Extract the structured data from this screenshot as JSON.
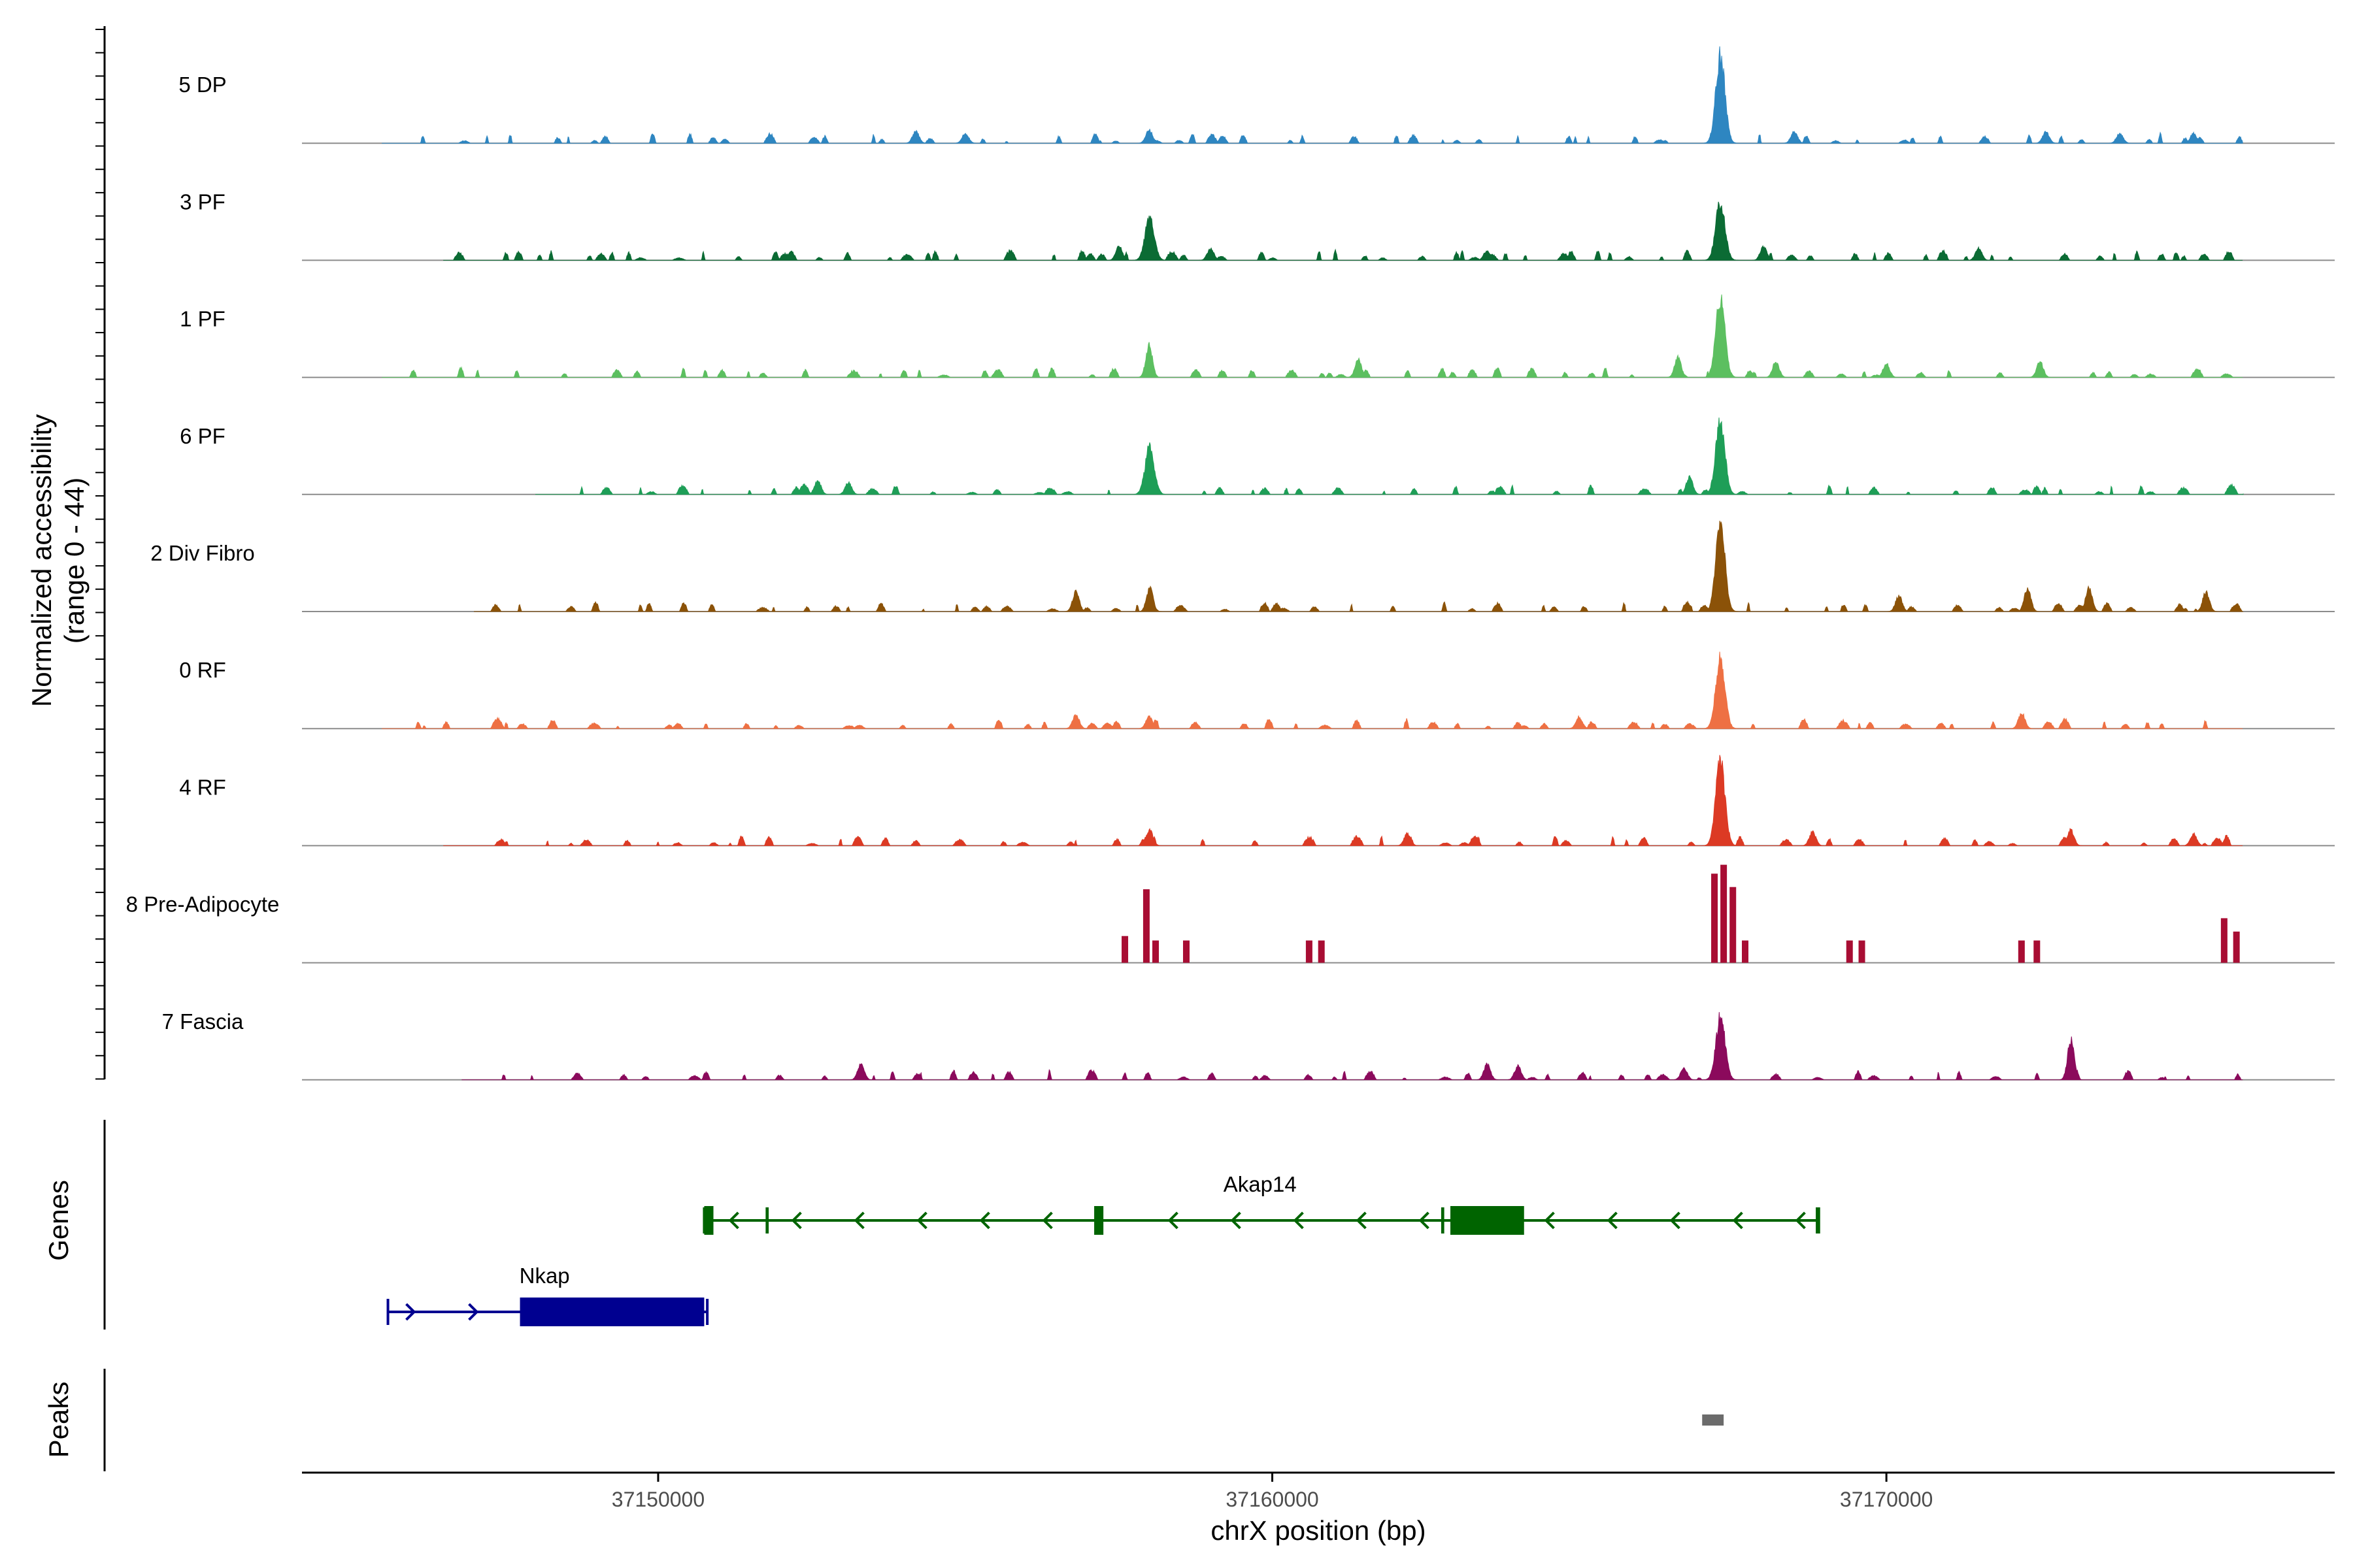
{
  "chart_data": {
    "type": "area",
    "title": "",
    "xlabel": "chrX position (bp)",
    "ylabel": "Normalized accessibility\n(range 0 - 44)",
    "ylabel_line1": "Normalized accessibility",
    "ylabel_line2": "(range 0 - 44)",
    "ylim": [
      0,
      44
    ],
    "xlim": [
      37144200,
      37177300
    ],
    "x_ticks": [
      {
        "value": 37150000,
        "label": "37150000"
      },
      {
        "value": 37160000,
        "label": "37160000"
      },
      {
        "value": 37170000,
        "label": "37170000"
      }
    ],
    "tracks": [
      {
        "name": "5 DP",
        "color": "#2E86C1",
        "range": [
          37145500,
          37175800
        ],
        "peaks": [
          [
            37158000,
            7
          ],
          [
            37167300,
            44
          ],
          [
            37154200,
            6
          ],
          [
            37155000,
            5
          ],
          [
            37168500,
            6
          ],
          [
            37172600,
            6
          ],
          [
            37173800,
            5
          ],
          [
            37175000,
            5
          ]
        ]
      },
      {
        "name": "3 PF",
        "color": "#0B6B34",
        "range": [
          37146500,
          37175800
        ],
        "peaks": [
          [
            37158000,
            22
          ],
          [
            37167300,
            30
          ],
          [
            37157500,
            7
          ],
          [
            37159000,
            6
          ],
          [
            37163500,
            5
          ],
          [
            37168000,
            7
          ],
          [
            37171500,
            6
          ]
        ]
      },
      {
        "name": "1 PF",
        "color": "#5CBF60",
        "range": [
          37145500,
          37175800
        ],
        "peaks": [
          [
            37158000,
            16
          ],
          [
            37167300,
            40
          ],
          [
            37166600,
            10
          ],
          [
            37168200,
            8
          ],
          [
            37161400,
            9
          ],
          [
            37170000,
            7
          ],
          [
            37172500,
            8
          ]
        ]
      },
      {
        "name": "6 PF",
        "color": "#1E9E57",
        "range": [
          37148000,
          37175800
        ],
        "peaks": [
          [
            37158000,
            24
          ],
          [
            37167300,
            38
          ],
          [
            37166800,
            9
          ],
          [
            37152600,
            7
          ],
          [
            37153100,
            6
          ]
        ]
      },
      {
        "name": "2 Div Fibro",
        "color": "#8B5208",
        "range": [
          37147000,
          37175800
        ],
        "peaks": [
          [
            37167300,
            44
          ],
          [
            37158000,
            12
          ],
          [
            37156800,
            10
          ],
          [
            37170200,
            8
          ],
          [
            37172300,
            12
          ],
          [
            37173300,
            12
          ],
          [
            37175200,
            10
          ]
        ]
      },
      {
        "name": "0 RF",
        "color": "#EE7043",
        "range": [
          37145500,
          37175800
        ],
        "peaks": [
          [
            37167300,
            36
          ],
          [
            37156800,
            7
          ],
          [
            37158000,
            6
          ],
          [
            37165000,
            6
          ],
          [
            37172200,
            8
          ]
        ]
      },
      {
        "name": "4 RF",
        "color": "#DC3A24",
        "range": [
          37146500,
          37175800
        ],
        "peaks": [
          [
            37167300,
            44
          ],
          [
            37158000,
            8
          ],
          [
            37162200,
            6
          ],
          [
            37168800,
            7
          ],
          [
            37173000,
            8
          ],
          [
            37175000,
            6
          ]
        ]
      },
      {
        "name": "8 Pre-Adipocyte",
        "color": "#A80D33",
        "type": "bars",
        "bars": [
          [
            37157600,
            12
          ],
          [
            37157950,
            33
          ],
          [
            37158100,
            10
          ],
          [
            37158600,
            10
          ],
          [
            37160600,
            10
          ],
          [
            37160800,
            10
          ],
          [
            37167200,
            40
          ],
          [
            37167350,
            44
          ],
          [
            37167500,
            34
          ],
          [
            37167700,
            10
          ],
          [
            37169400,
            10
          ],
          [
            37169600,
            10
          ],
          [
            37172200,
            10
          ],
          [
            37172450,
            10
          ],
          [
            37175500,
            20
          ],
          [
            37175700,
            14
          ]
        ]
      },
      {
        "name": "7 Fascia",
        "color": "#8B0A5C",
        "range": [
          37146800,
          37175800
        ],
        "peaks": [
          [
            37167300,
            32
          ],
          [
            37173000,
            20
          ],
          [
            37163500,
            8
          ],
          [
            37164000,
            7
          ],
          [
            37153300,
            8
          ],
          [
            37166700,
            6
          ]
        ]
      }
    ],
    "genes": {
      "label": "Genes",
      "items": [
        {
          "name": "Nkap",
          "color": "#000090",
          "strand": "+",
          "start": 37145600,
          "end": 37150800,
          "exons": [
            [
              37147750,
              37150750
            ]
          ],
          "row": 2
        },
        {
          "name": "Akap14",
          "color": "#006400",
          "strand": "-",
          "start": 37150750,
          "end": 37168900,
          "exons": [
            [
              37150750,
              37150900
            ],
            [
              37151750,
              37151800
            ],
            [
              37157100,
              37157250
            ],
            [
              37162750,
              37162800
            ],
            [
              37162900,
              37164100
            ],
            [
              37168850,
              37168900
            ]
          ],
          "row": 1
        }
      ]
    },
    "peaks": {
      "label": "Peaks",
      "color": "#6b6b6b",
      "regions": [
        [
          37167000,
          37167350
        ]
      ]
    }
  }
}
